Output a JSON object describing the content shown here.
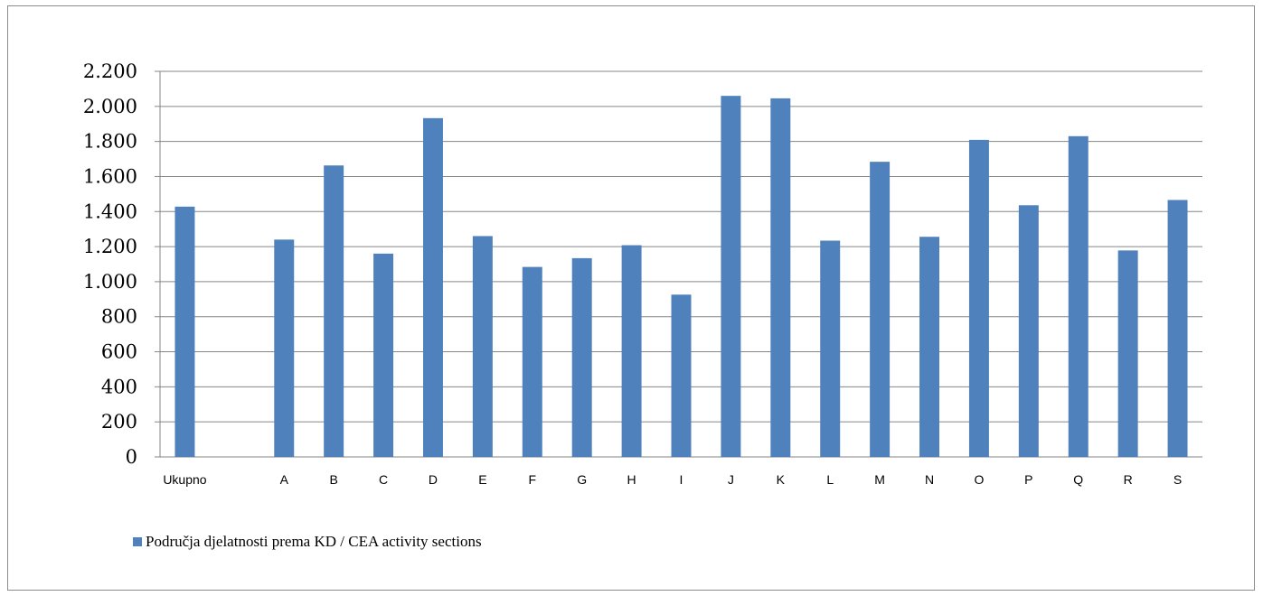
{
  "chart_data": {
    "type": "bar",
    "categories": [
      "Ukupno",
      "",
      "A",
      "B",
      "C",
      "D",
      "E",
      "F",
      "G",
      "H",
      "I",
      "J",
      "K",
      "L",
      "M",
      "N",
      "O",
      "P",
      "Q",
      "R",
      "S"
    ],
    "series": [
      {
        "name": "Područja djelatnosti prema KD / CEA activity sections",
        "values": [
          1428,
          null,
          1240,
          1663,
          1160,
          1933,
          1260,
          1084,
          1134,
          1208,
          926,
          2060,
          2046,
          1234,
          1684,
          1256,
          1809,
          1436,
          1830,
          1178,
          1466
        ]
      }
    ],
    "ylim": [
      0,
      2200
    ],
    "yticks": [
      0,
      200,
      400,
      600,
      800,
      1000,
      1200,
      1400,
      1600,
      1800,
      2000,
      2200
    ],
    "ytick_labels": [
      "0",
      "200",
      "400",
      "600",
      "800",
      "1.000",
      "1.200",
      "1.400",
      "1.600",
      "1.800",
      "2.000",
      "2.200"
    ],
    "grid": true,
    "legend_position": "bottom-left",
    "bar_color": "#4f81bd"
  }
}
